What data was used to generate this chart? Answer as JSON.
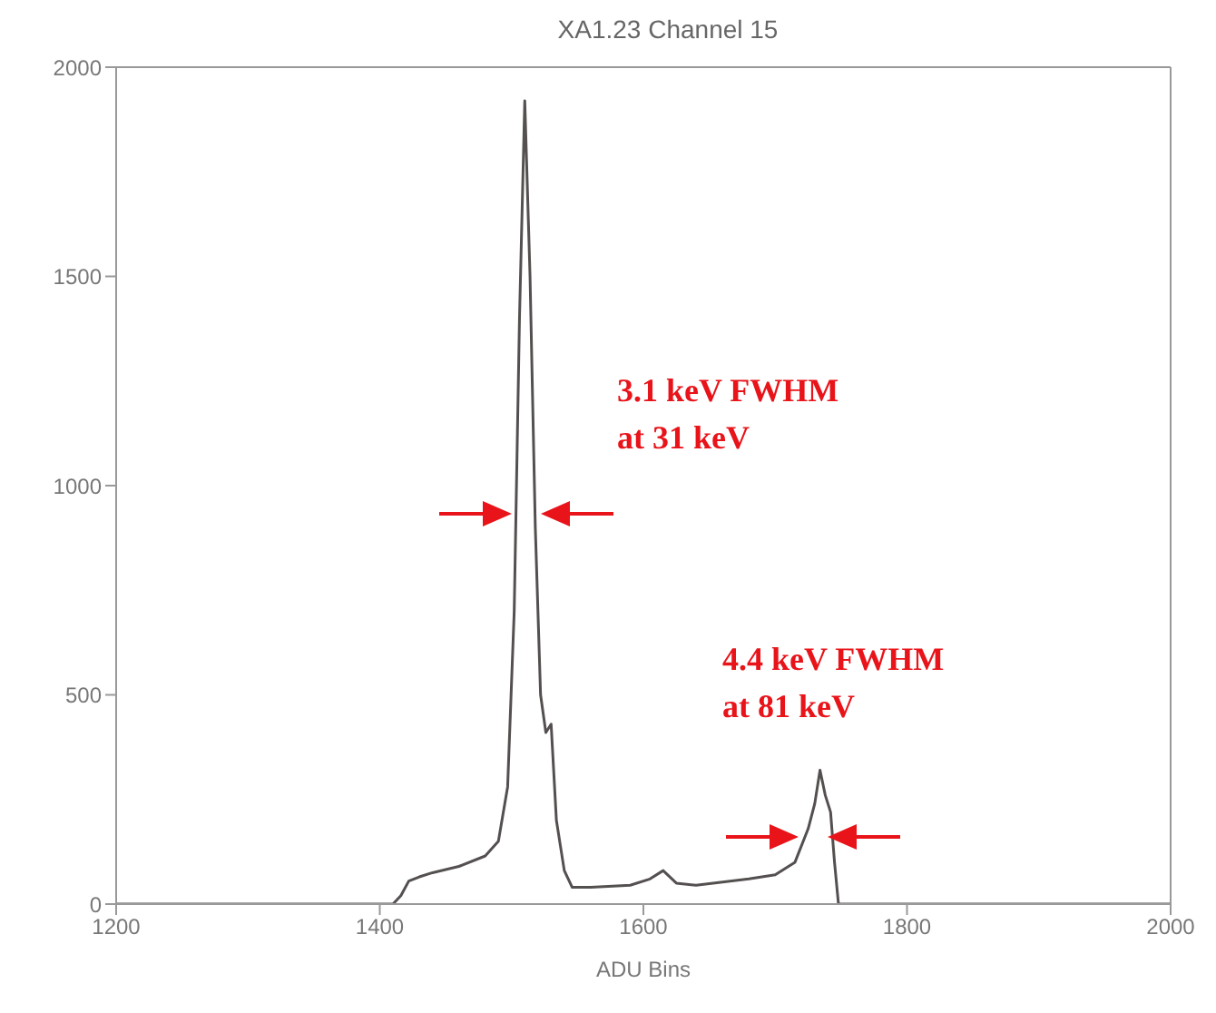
{
  "chart_data": {
    "type": "line",
    "title": "XA1.23  Channel 15",
    "xlabel": "ADU Bins",
    "x": [
      1200,
      1410,
      1416,
      1422,
      1430,
      1440,
      1460,
      1480,
      1490,
      1497,
      1502,
      1506,
      1510,
      1514,
      1518,
      1522,
      1526,
      1530,
      1534,
      1540,
      1546,
      1560,
      1590,
      1605,
      1615,
      1625,
      1640,
      1680,
      1700,
      1715,
      1725,
      1730,
      1734,
      1738,
      1742,
      1745,
      1748,
      1800,
      2000
    ],
    "series": [
      {
        "color": "#555050",
        "values": [
          0,
          0,
          20,
          55,
          65,
          75,
          90,
          115,
          150,
          280,
          700,
          1400,
          1920,
          1500,
          900,
          500,
          410,
          430,
          200,
          80,
          40,
          40,
          45,
          60,
          80,
          50,
          45,
          60,
          70,
          100,
          180,
          240,
          320,
          260,
          220,
          100,
          0,
          0,
          0
        ]
      }
    ],
    "xlim": [
      1200,
      2000
    ],
    "xticks": [
      1200,
      1400,
      1600,
      1800,
      2000
    ],
    "ylim": [
      0,
      2000
    ],
    "yticks": [
      0,
      500,
      1000,
      1500,
      2000
    ],
    "grid": false,
    "legend": false,
    "marker": "none",
    "line_style": "solid",
    "annotations": [
      "3.1 keV FWHM\nat 31 keV",
      "4.4 keV FWHM\nat 81 keV"
    ]
  }
}
